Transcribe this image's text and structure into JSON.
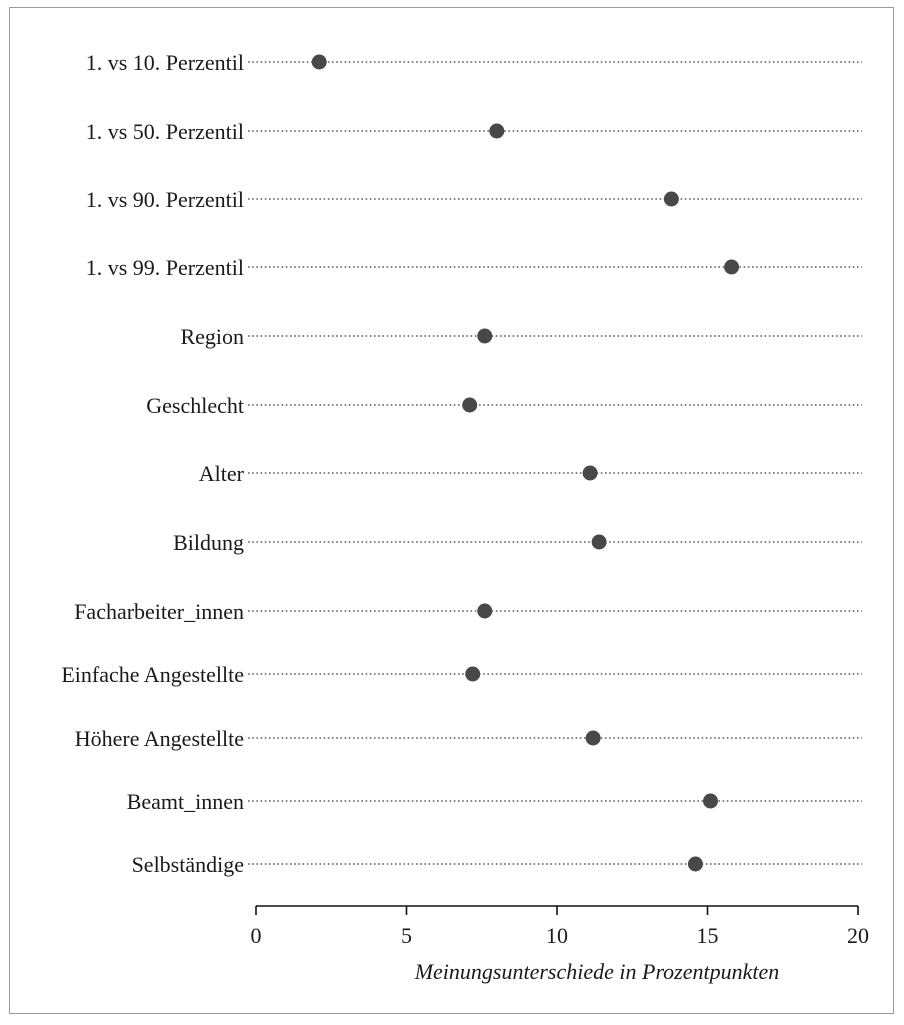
{
  "chart_data": {
    "type": "scatter",
    "subtype": "dot-plot",
    "title": "",
    "xlabel": "Meinungsunterschiede in Prozentpunkten",
    "ylabel": "",
    "xlim": [
      0,
      20
    ],
    "x_ticks": [
      0,
      5,
      10,
      15,
      20
    ],
    "x_tick_labels": [
      "0",
      "5",
      "10",
      "15",
      "20"
    ],
    "grid": "dotted horizontal guide lines per category",
    "legend": "none",
    "point_color": "#484848",
    "categories": [
      "1. vs 10. Perzentil",
      "1. vs 50. Perzentil",
      "1. vs 90. Perzentil",
      "1. vs 99. Perzentil",
      "Region",
      "Geschlecht",
      "Alter",
      "Bildung",
      "Facharbeiter_innen",
      "Einfache Angestellte",
      "Höhere Angestellte",
      "Beamt_innen",
      "Selbständige"
    ],
    "values": [
      2.1,
      8.0,
      13.8,
      15.8,
      7.6,
      7.1,
      11.1,
      11.4,
      7.6,
      7.2,
      11.2,
      15.1,
      14.6
    ]
  }
}
